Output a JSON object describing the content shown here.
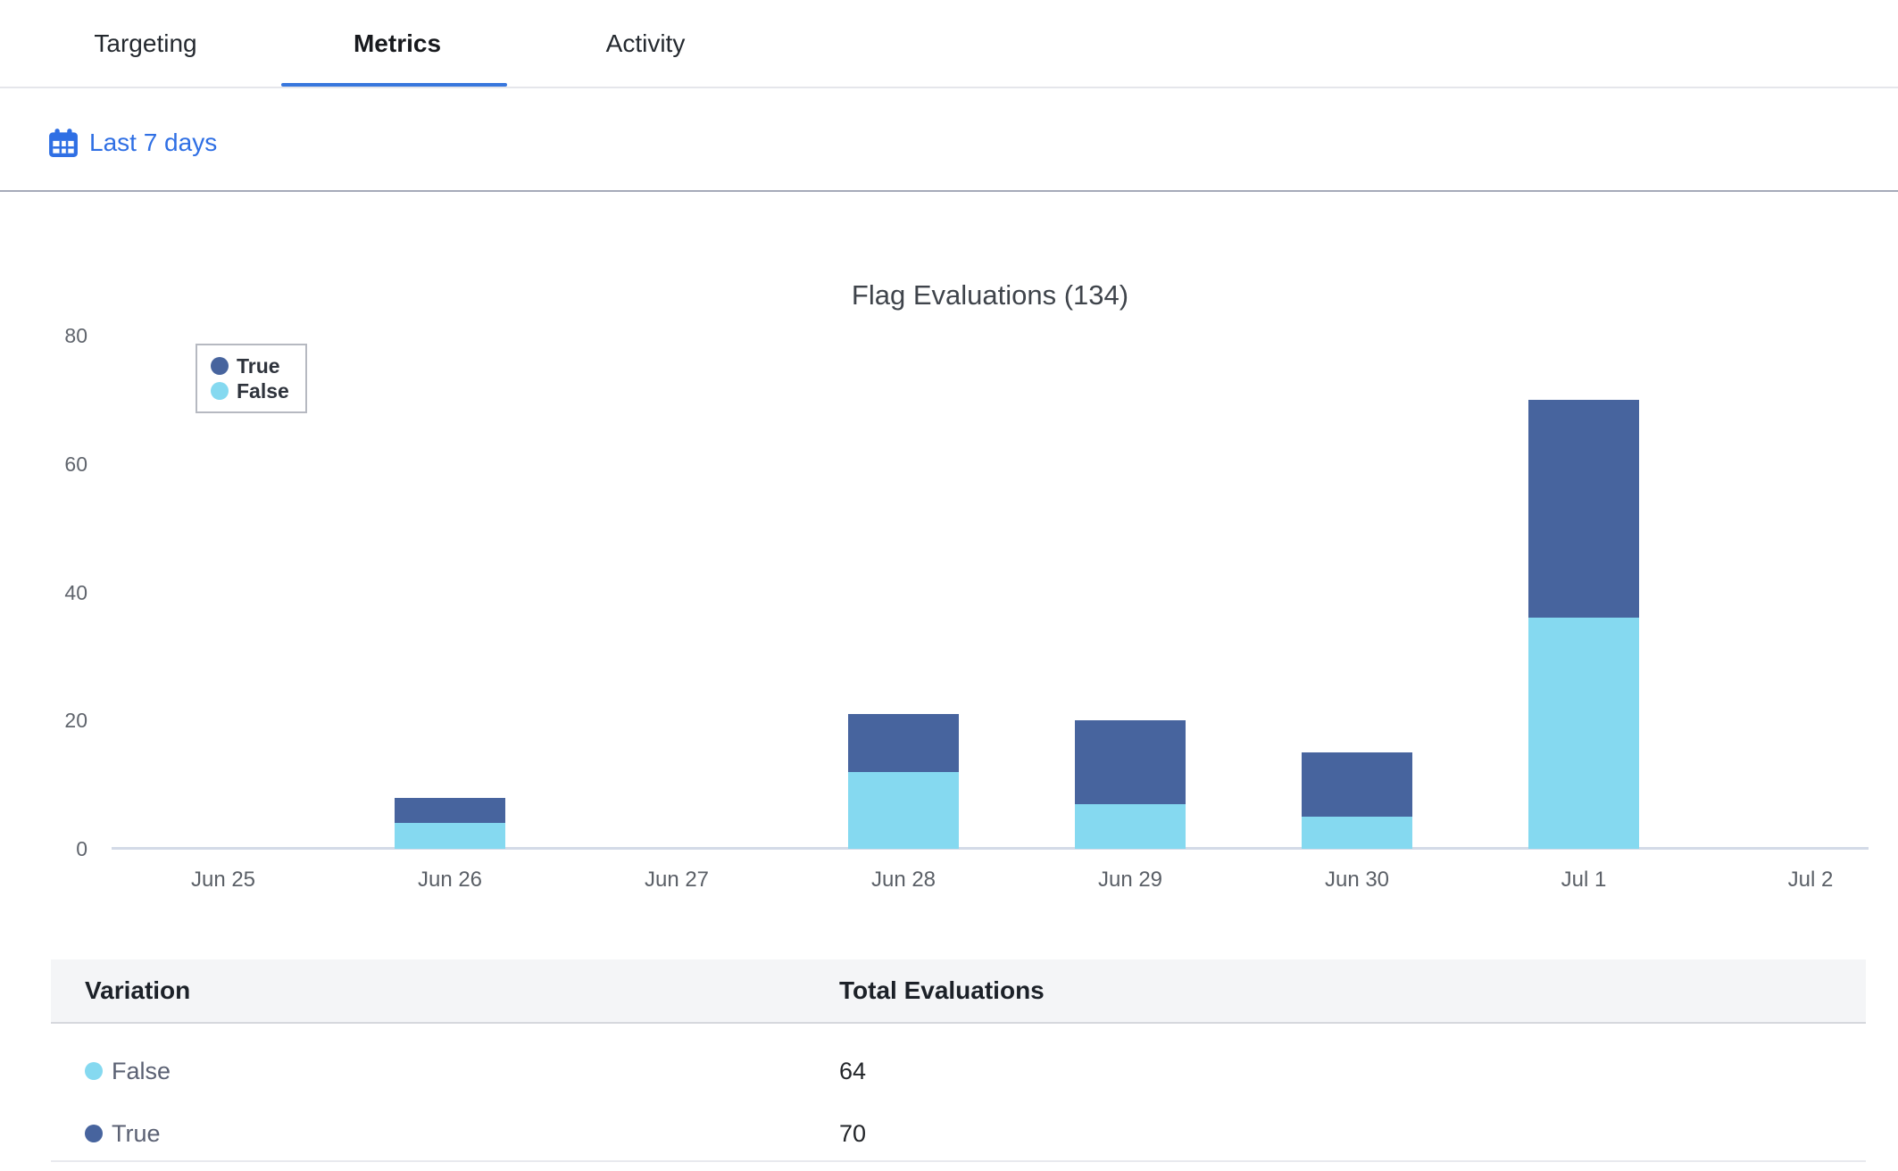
{
  "tabs": {
    "items": [
      {
        "label": "Targeting",
        "active": false
      },
      {
        "label": "Metrics",
        "active": true
      },
      {
        "label": "Activity",
        "active": false
      }
    ]
  },
  "toolbar": {
    "date_range_label": "Last 7 days"
  },
  "chart_data": {
    "type": "bar",
    "stacked": true,
    "title": "Flag Evaluations (134)",
    "xlabel": "",
    "ylabel": "",
    "categories": [
      "Jun 25",
      "Jun 26",
      "Jun 27",
      "Jun 28",
      "Jun 29",
      "Jun 30",
      "Jul 1",
      "Jul 2"
    ],
    "series": [
      {
        "name": "True",
        "color": "#47649e",
        "values": [
          0,
          4,
          0,
          9,
          13,
          10,
          34,
          0
        ]
      },
      {
        "name": "False",
        "color": "#85d9f0",
        "values": [
          0,
          4,
          0,
          12,
          7,
          5,
          36,
          0
        ]
      }
    ],
    "stack_order": [
      "False",
      "True"
    ],
    "legend_order": [
      "True",
      "False"
    ],
    "legend_position": "top-left",
    "grid": false,
    "ylim": [
      0,
      80
    ],
    "yticks": [
      0,
      20,
      40,
      60,
      80
    ]
  },
  "table": {
    "columns": [
      "Variation",
      "Total Evaluations"
    ],
    "rows": [
      {
        "variation": "False",
        "color": "#85d9f0",
        "total": "64"
      },
      {
        "variation": "True",
        "color": "#47649e",
        "total": "70"
      }
    ]
  },
  "colors": {
    "accent_blue": "#2f6fe4",
    "tab_underline": "#3877dd",
    "true_series": "#47649e",
    "false_series": "#85d9f0",
    "axis_line": "#d3dae7",
    "divider": "#a6aab9"
  }
}
